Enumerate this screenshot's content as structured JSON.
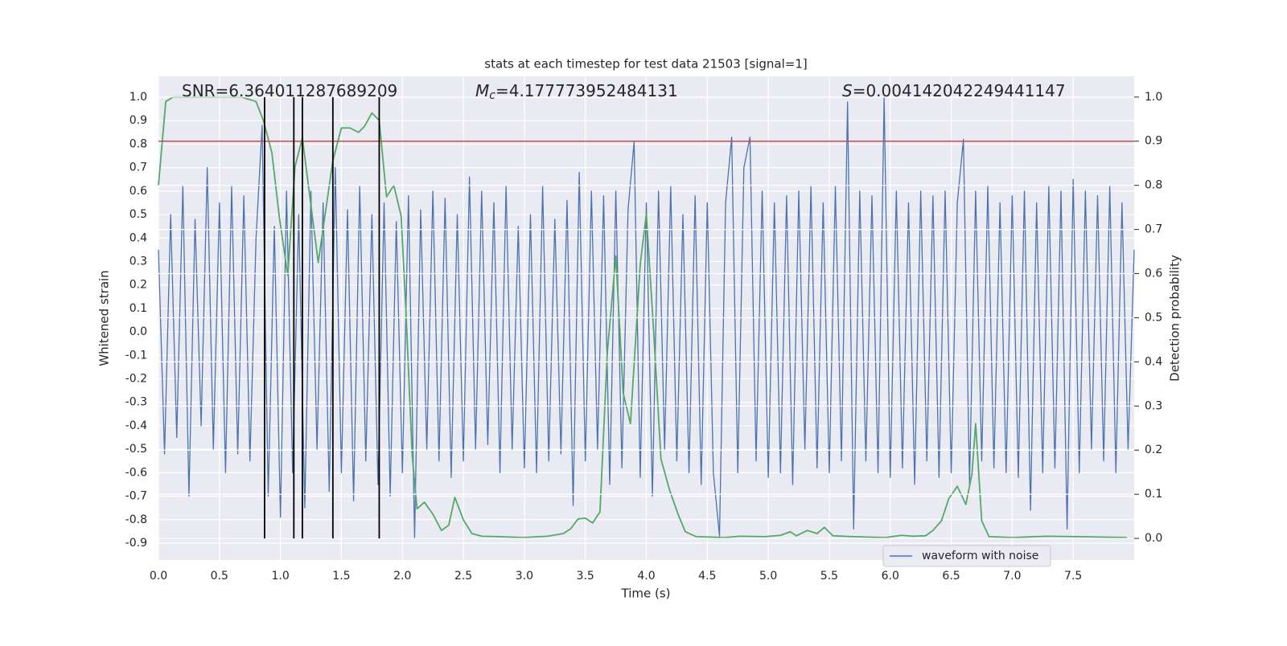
{
  "chart_data": {
    "type": "line",
    "title": "stats at each timestep for test data 21503 [signal=1]",
    "xlabel": "Time (s)",
    "ylabel": "Whitened strain",
    "y2label": "Detection probability",
    "annotations": [
      {
        "text": "SNR=6.364011287689209"
      },
      {
        "symbol": "M",
        "subscript": "c",
        "text": "=4.177773952484131"
      },
      {
        "symbol": "S",
        "text": "=0.004142042249441147"
      }
    ],
    "xlim": [
      0,
      8
    ],
    "xticks": [
      {
        "value": 0,
        "label": "0.0"
      },
      0.5,
      {
        "value": 1,
        "label": "1.0"
      },
      1.5,
      {
        "value": 2,
        "label": "2.0"
      },
      2.5,
      {
        "value": 3,
        "label": "3.0"
      },
      3.5,
      {
        "value": 4,
        "label": "4.0"
      },
      4.5,
      {
        "value": 5,
        "label": "5.0"
      },
      5.5,
      {
        "value": 6,
        "label": "6.0"
      },
      6.5,
      {
        "value": 7,
        "label": "7.0"
      },
      7.5
    ],
    "ylim": [
      -0.972,
      1.089
    ],
    "yticks": [
      -0.9,
      -0.8,
      -0.7,
      -0.6,
      -0.5,
      -0.4,
      -0.3,
      -0.2,
      -0.1,
      {
        "value": 0,
        "label": "0.0"
      },
      0.1,
      0.2,
      0.3,
      0.4,
      0.5,
      0.6,
      0.7,
      0.8,
      0.9,
      {
        "value": 1,
        "label": "1.0"
      }
    ],
    "y2lim": [
      -0.049,
      1.047
    ],
    "y2ticks": [
      {
        "value": 0,
        "label": "0.0"
      },
      0.1,
      0.2,
      0.3,
      0.4,
      0.5,
      0.6,
      0.7,
      0.8,
      0.9,
      {
        "value": 1,
        "label": "1.0"
      }
    ],
    "grid": true,
    "legend": "lower right",
    "series": [
      {
        "name": "waveform with noise",
        "color": "#4c72b0",
        "x": [
          0,
          0.05,
          0.1,
          0.15,
          0.2,
          0.25,
          0.3,
          0.35,
          0.4,
          0.45,
          0.5,
          0.55,
          0.6,
          0.65,
          0.7,
          0.75,
          0.8,
          0.85,
          0.9,
          0.95,
          1,
          1.05,
          1.1,
          1.15,
          1.2,
          1.25,
          1.3,
          1.35,
          1.4,
          1.45,
          1.5,
          1.55,
          1.6,
          1.65,
          1.7,
          1.75,
          1.8,
          1.85,
          1.9,
          1.95,
          2,
          2.05,
          2.1,
          2.15,
          2.2,
          2.25,
          2.3,
          2.35,
          2.4,
          2.45,
          2.5,
          2.55,
          2.6,
          2.65,
          2.7,
          2.75,
          2.8,
          2.85,
          2.9,
          2.95,
          3,
          3.05,
          3.1,
          3.15,
          3.2,
          3.25,
          3.3,
          3.35,
          3.4,
          3.45,
          3.5,
          3.55,
          3.6,
          3.65,
          3.7,
          3.75,
          3.8,
          3.85,
          3.9,
          3.95,
          4,
          4.05,
          4.1,
          4.15,
          4.2,
          4.25,
          4.3,
          4.35,
          4.4,
          4.45,
          4.5,
          4.55,
          4.6,
          4.65,
          4.7,
          4.75,
          4.8,
          4.85,
          4.9,
          4.95,
          5,
          5.05,
          5.1,
          5.15,
          5.2,
          5.25,
          5.3,
          5.35,
          5.4,
          5.45,
          5.5,
          5.55,
          5.6,
          5.65,
          5.7,
          5.75,
          5.8,
          5.85,
          5.9,
          5.95,
          6,
          6.05,
          6.1,
          6.15,
          6.2,
          6.25,
          6.3,
          6.35,
          6.4,
          6.45,
          6.5,
          6.55,
          6.6,
          6.65,
          6.7,
          6.75,
          6.8,
          6.85,
          6.9,
          6.95,
          7,
          7.05,
          7.1,
          7.15,
          7.2,
          7.25,
          7.3,
          7.35,
          7.4,
          7.45,
          7.5,
          7.55,
          7.6,
          7.65,
          7.7,
          7.75,
          7.8,
          7.85,
          7.9,
          7.95,
          8
        ],
        "values": [
          0.35,
          -0.52,
          0.5,
          -0.45,
          0.62,
          -0.7,
          0.48,
          -0.4,
          0.7,
          -0.5,
          0.55,
          -0.6,
          0.62,
          -0.52,
          0.58,
          -0.55,
          0.4,
          0.88,
          -0.7,
          0.45,
          -0.79,
          0.6,
          -0.6,
          0.5,
          -0.75,
          0.6,
          -0.5,
          0.55,
          -0.68,
          0.7,
          -0.6,
          0.52,
          -0.72,
          0.62,
          -0.55,
          0.5,
          -0.65,
          0.55,
          -0.7,
          0.47,
          -0.6,
          0.58,
          -0.88,
          0.52,
          -0.5,
          0.6,
          -0.55,
          0.57,
          -0.62,
          0.5,
          -0.55,
          0.66,
          -0.5,
          0.6,
          -0.48,
          0.55,
          -0.6,
          0.62,
          -0.5,
          0.45,
          -0.58,
          0.5,
          -0.6,
          0.62,
          -0.55,
          0.48,
          -0.52,
          0.56,
          -0.74,
          0.68,
          -0.55,
          0.6,
          -0.5,
          0.58,
          -0.65,
          0.6,
          -0.58,
          0.52,
          0.81,
          -0.62,
          0.55,
          -0.7,
          0.6,
          -0.5,
          0.62,
          -0.55,
          0.5,
          -0.6,
          0.58,
          -0.65,
          0.55,
          -0.6,
          -0.87,
          0.55,
          0.83,
          -0.6,
          0.7,
          0.83,
          -0.55,
          0.6,
          -0.62,
          0.55,
          -0.6,
          0.58,
          -0.65,
          0.6,
          -0.5,
          0.62,
          -0.58,
          0.55,
          -0.6,
          0.62,
          -0.55,
          0.98,
          -0.84,
          0.6,
          -0.55,
          0.58,
          -0.6,
          1.0,
          -0.62,
          0.6,
          -0.58,
          0.55,
          -0.65,
          0.6,
          -0.55,
          0.58,
          -0.62,
          0.6,
          -0.6,
          0.55,
          0.82,
          -0.65,
          0.6,
          -0.55,
          0.62,
          -0.58,
          0.55,
          -0.6,
          0.58,
          -0.62,
          0.6,
          -0.76,
          0.55,
          -0.6,
          0.62,
          -0.58,
          0.6,
          -0.84,
          0.65,
          -0.6,
          0.6,
          -0.5,
          0.58,
          -0.55,
          0.62,
          -0.6,
          0.55,
          -0.5,
          0.35
        ]
      },
      {
        "color": "#55a868",
        "axis": "y2",
        "x": [
          0,
          0.06,
          0.12,
          0.68,
          0.8,
          0.86,
          0.93,
          0.99,
          1.06,
          1.12,
          1.18,
          1.31,
          1.43,
          1.5,
          1.57,
          1.64,
          1.69,
          1.75,
          1.81,
          1.87,
          1.93,
          1.99,
          2.03,
          2.08,
          2.12,
          2.18,
          2.25,
          2.32,
          2.38,
          2.43,
          2.5,
          2.57,
          2.65,
          2.79,
          2.99,
          3.19,
          3.32,
          3.38,
          3.44,
          3.5,
          3.56,
          3.62,
          3.68,
          3.75,
          3.81,
          3.87,
          3.95,
          4.0,
          4.06,
          4.12,
          4.19,
          4.26,
          4.32,
          4.41,
          4.64,
          4.77,
          4.97,
          5.1,
          5.18,
          5.23,
          5.32,
          5.4,
          5.46,
          5.53,
          5.69,
          5.96,
          6.09,
          6.19,
          6.29,
          6.35,
          6.42,
          6.48,
          6.55,
          6.62,
          6.67,
          6.7,
          6.75,
          6.81,
          7.01,
          7.28,
          7.54,
          7.94
        ],
        "values": [
          0.8,
          0.99,
          1.0,
          1.0,
          0.99,
          0.947,
          0.874,
          0.73,
          0.596,
          0.843,
          0.907,
          0.625,
          0.856,
          0.93,
          0.93,
          0.92,
          0.934,
          0.964,
          0.947,
          0.774,
          0.8,
          0.73,
          0.51,
          0.19,
          0.067,
          0.082,
          0.055,
          0.018,
          0.03,
          0.093,
          0.042,
          0.011,
          0.005,
          0.004,
          0.002,
          0.005,
          0.011,
          0.022,
          0.044,
          0.046,
          0.035,
          0.06,
          0.42,
          0.64,
          0.33,
          0.26,
          0.62,
          0.736,
          0.47,
          0.18,
          0.11,
          0.055,
          0.015,
          0.004,
          0.002,
          0.005,
          0.004,
          0.007,
          0.015,
          0.006,
          0.018,
          0.011,
          0.025,
          0.006,
          0.004,
          0.002,
          0.007,
          0.005,
          0.006,
          0.018,
          0.04,
          0.09,
          0.118,
          0.077,
          0.146,
          0.26,
          0.04,
          0.004,
          0.002,
          0.005,
          0.004,
          0.002
        ]
      }
    ],
    "threshold": {
      "value": 0.9,
      "color": "#c44e52",
      "axis": "y2"
    },
    "markers": {
      "x": [
        0.87,
        1.11,
        1.18,
        1.43,
        1.81
      ],
      "span": [
        0,
        1
      ],
      "color": "#000000",
      "axis": "y2"
    }
  }
}
